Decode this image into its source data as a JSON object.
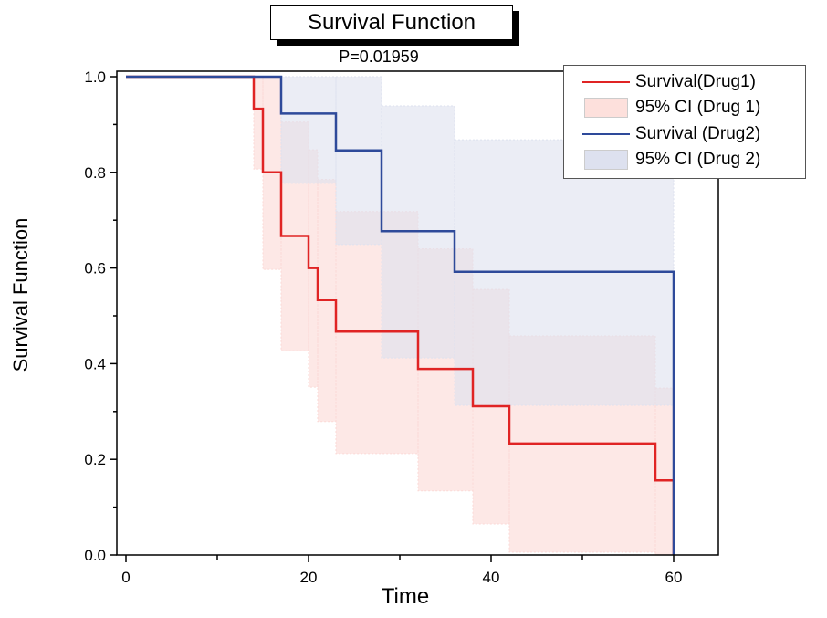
{
  "chart_data": {
    "type": "line",
    "subtype": "kaplan-meier step plot with confidence bands",
    "title": "Survival Function",
    "subtitle": "P=0.01959",
    "xlabel": "Time",
    "ylabel": "Survival Function",
    "xlim": [
      -1,
      65
    ],
    "ylim": [
      0,
      1.0
    ],
    "xticks": [
      0,
      20,
      40,
      60
    ],
    "xticks_minor": [
      10,
      30,
      50
    ],
    "yticks": [
      0.0,
      0.2,
      0.4,
      0.6,
      0.8,
      1.0
    ],
    "yticks_minor": [
      0.1,
      0.3,
      0.5,
      0.7,
      0.9
    ],
    "ytick_labels": [
      "0.0",
      "0.2",
      "0.4",
      "0.6",
      "0.8",
      "1.0"
    ],
    "grid": false,
    "legend_position": "top-right",
    "series": [
      {
        "name": "Survival(Drug1)",
        "kind": "step",
        "color": "#e02424",
        "x": [
          0,
          14,
          15,
          17,
          20,
          21,
          23,
          32,
          38,
          42,
          58,
          60
        ],
        "y": [
          1.0,
          0.933,
          0.8,
          0.667,
          0.6,
          0.533,
          0.467,
          0.389,
          0.311,
          0.233,
          0.156,
          0.0
        ]
      },
      {
        "name": "95% CI (Drug 1)",
        "kind": "band",
        "color": "#fbd9d6",
        "x": [
          14,
          15,
          17,
          20,
          21,
          23,
          32,
          38,
          42,
          58,
          60
        ],
        "lower": [
          0.807,
          0.597,
          0.427,
          0.351,
          0.279,
          0.212,
          0.134,
          0.065,
          0.006,
          0.0
        ],
        "upper": [
          1.0,
          1.0,
          0.905,
          0.847,
          0.785,
          0.718,
          0.64,
          0.555,
          0.458,
          0.349
        ]
      },
      {
        "name": "Survival (Drug2)",
        "kind": "step",
        "color": "#2e4a9a",
        "x": [
          0,
          17,
          23,
          28,
          36,
          60
        ],
        "y": [
          1.0,
          0.923,
          0.846,
          0.677,
          0.592,
          0.0
        ]
      },
      {
        "name": "95% CI (Drug 2)",
        "kind": "band",
        "color": "#dde1ef",
        "x": [
          17,
          23,
          28,
          36,
          60
        ],
        "lower": [
          0.777,
          0.649,
          0.412,
          0.313
        ],
        "upper": [
          1.0,
          1.0,
          0.939,
          0.868
        ]
      }
    ]
  },
  "legend": {
    "items": [
      {
        "label": "Survival(Drug1)",
        "type": "line",
        "color": "#e02424"
      },
      {
        "label": "95% CI (Drug 1)",
        "type": "box",
        "color": "#fde0dc"
      },
      {
        "label": "Survival (Drug2)",
        "type": "line",
        "color": "#2e4a9a"
      },
      {
        "label": "95% CI (Drug 2)",
        "type": "box",
        "color": "#dde1ef"
      }
    ]
  }
}
